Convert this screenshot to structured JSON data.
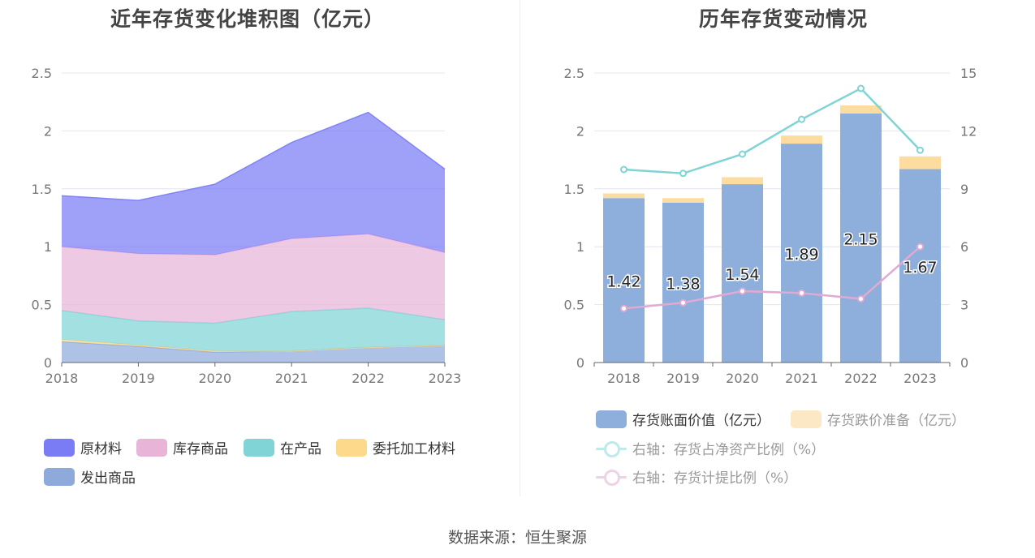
{
  "left_chart": {
    "title": "近年存货变化堆积图（亿元）",
    "legend": {
      "raw_materials": "原材料",
      "finished_goods": "库存商品",
      "wip": "在产品",
      "consigned": "委托加工材料",
      "shipped": "发出商品"
    }
  },
  "right_chart": {
    "title": "历年存货变动情况",
    "legend": {
      "book_value": "存货账面价值（亿元）",
      "impairment": "存货跌价准备（亿元）",
      "ratio_net_assets": "右轴：存货占净资产比例（%）",
      "provision_ratio": "右轴：存货计提比例（%）"
    }
  },
  "source": "数据来源：恒生聚源",
  "chart_data": [
    {
      "type": "area",
      "stacked": true,
      "title": "近年存货变化堆积图（亿元）",
      "x": [
        "2018",
        "2019",
        "2020",
        "2021",
        "2022",
        "2023"
      ],
      "ylim": [
        0,
        2.5
      ],
      "yticks": [
        "0",
        "0.5",
        "1",
        "1.5",
        "2",
        "2.5"
      ],
      "grid": true,
      "legend_position": "bottom",
      "series": [
        {
          "name": "发出商品",
          "color": "#8eaadb",
          "values": [
            0.18,
            0.14,
            0.09,
            0.1,
            0.13,
            0.15
          ]
        },
        {
          "name": "委托加工材料",
          "color": "#fdd98b",
          "values": [
            0.02,
            0.01,
            0.01,
            0.0,
            0.0,
            0.0
          ]
        },
        {
          "name": "在产品",
          "color": "#80d4d6",
          "values": [
            0.25,
            0.21,
            0.24,
            0.34,
            0.34,
            0.22
          ]
        },
        {
          "name": "库存商品",
          "color": "#e8b4d8",
          "values": [
            0.55,
            0.58,
            0.59,
            0.63,
            0.64,
            0.58
          ]
        },
        {
          "name": "原材料",
          "color": "#7a7cf5",
          "values": [
            0.44,
            0.46,
            0.61,
            0.83,
            1.05,
            0.72
          ]
        }
      ]
    },
    {
      "type": "bar",
      "stacked": true,
      "title": "历年存货变动情况",
      "categories": [
        "2018",
        "2019",
        "2020",
        "2021",
        "2022",
        "2023"
      ],
      "ylim": [
        0,
        2.5
      ],
      "yticks": [
        "0",
        "0.5",
        "1",
        "1.5",
        "2",
        "2.5"
      ],
      "y2lim": [
        0,
        15
      ],
      "y2ticks": [
        "0",
        "3",
        "6",
        "9",
        "12",
        "15"
      ],
      "grid": true,
      "legend_position": "bottom",
      "series": [
        {
          "name": "存货账面价值（亿元）",
          "type": "bar",
          "axis": "left",
          "color": "#8eaedb",
          "values": [
            1.42,
            1.38,
            1.54,
            1.89,
            2.15,
            1.67
          ],
          "labels": [
            "1.42",
            "1.38",
            "1.54",
            "1.89",
            "2.15",
            "1.67"
          ]
        },
        {
          "name": "存货跌价准备（亿元）",
          "type": "bar",
          "axis": "left",
          "color": "#fddca0",
          "values": [
            0.04,
            0.04,
            0.06,
            0.07,
            0.07,
            0.11
          ]
        },
        {
          "name": "右轴：存货占净资产比例（%）",
          "type": "line",
          "axis": "right",
          "color": "#80d4d6",
          "values": [
            10.0,
            9.8,
            10.8,
            12.6,
            14.2,
            11.0
          ]
        },
        {
          "name": "右轴：存货计提比例（%）",
          "type": "line",
          "axis": "right",
          "color": "#e0aad2",
          "values": [
            2.8,
            3.1,
            3.7,
            3.6,
            3.3,
            6.0
          ]
        }
      ]
    }
  ]
}
